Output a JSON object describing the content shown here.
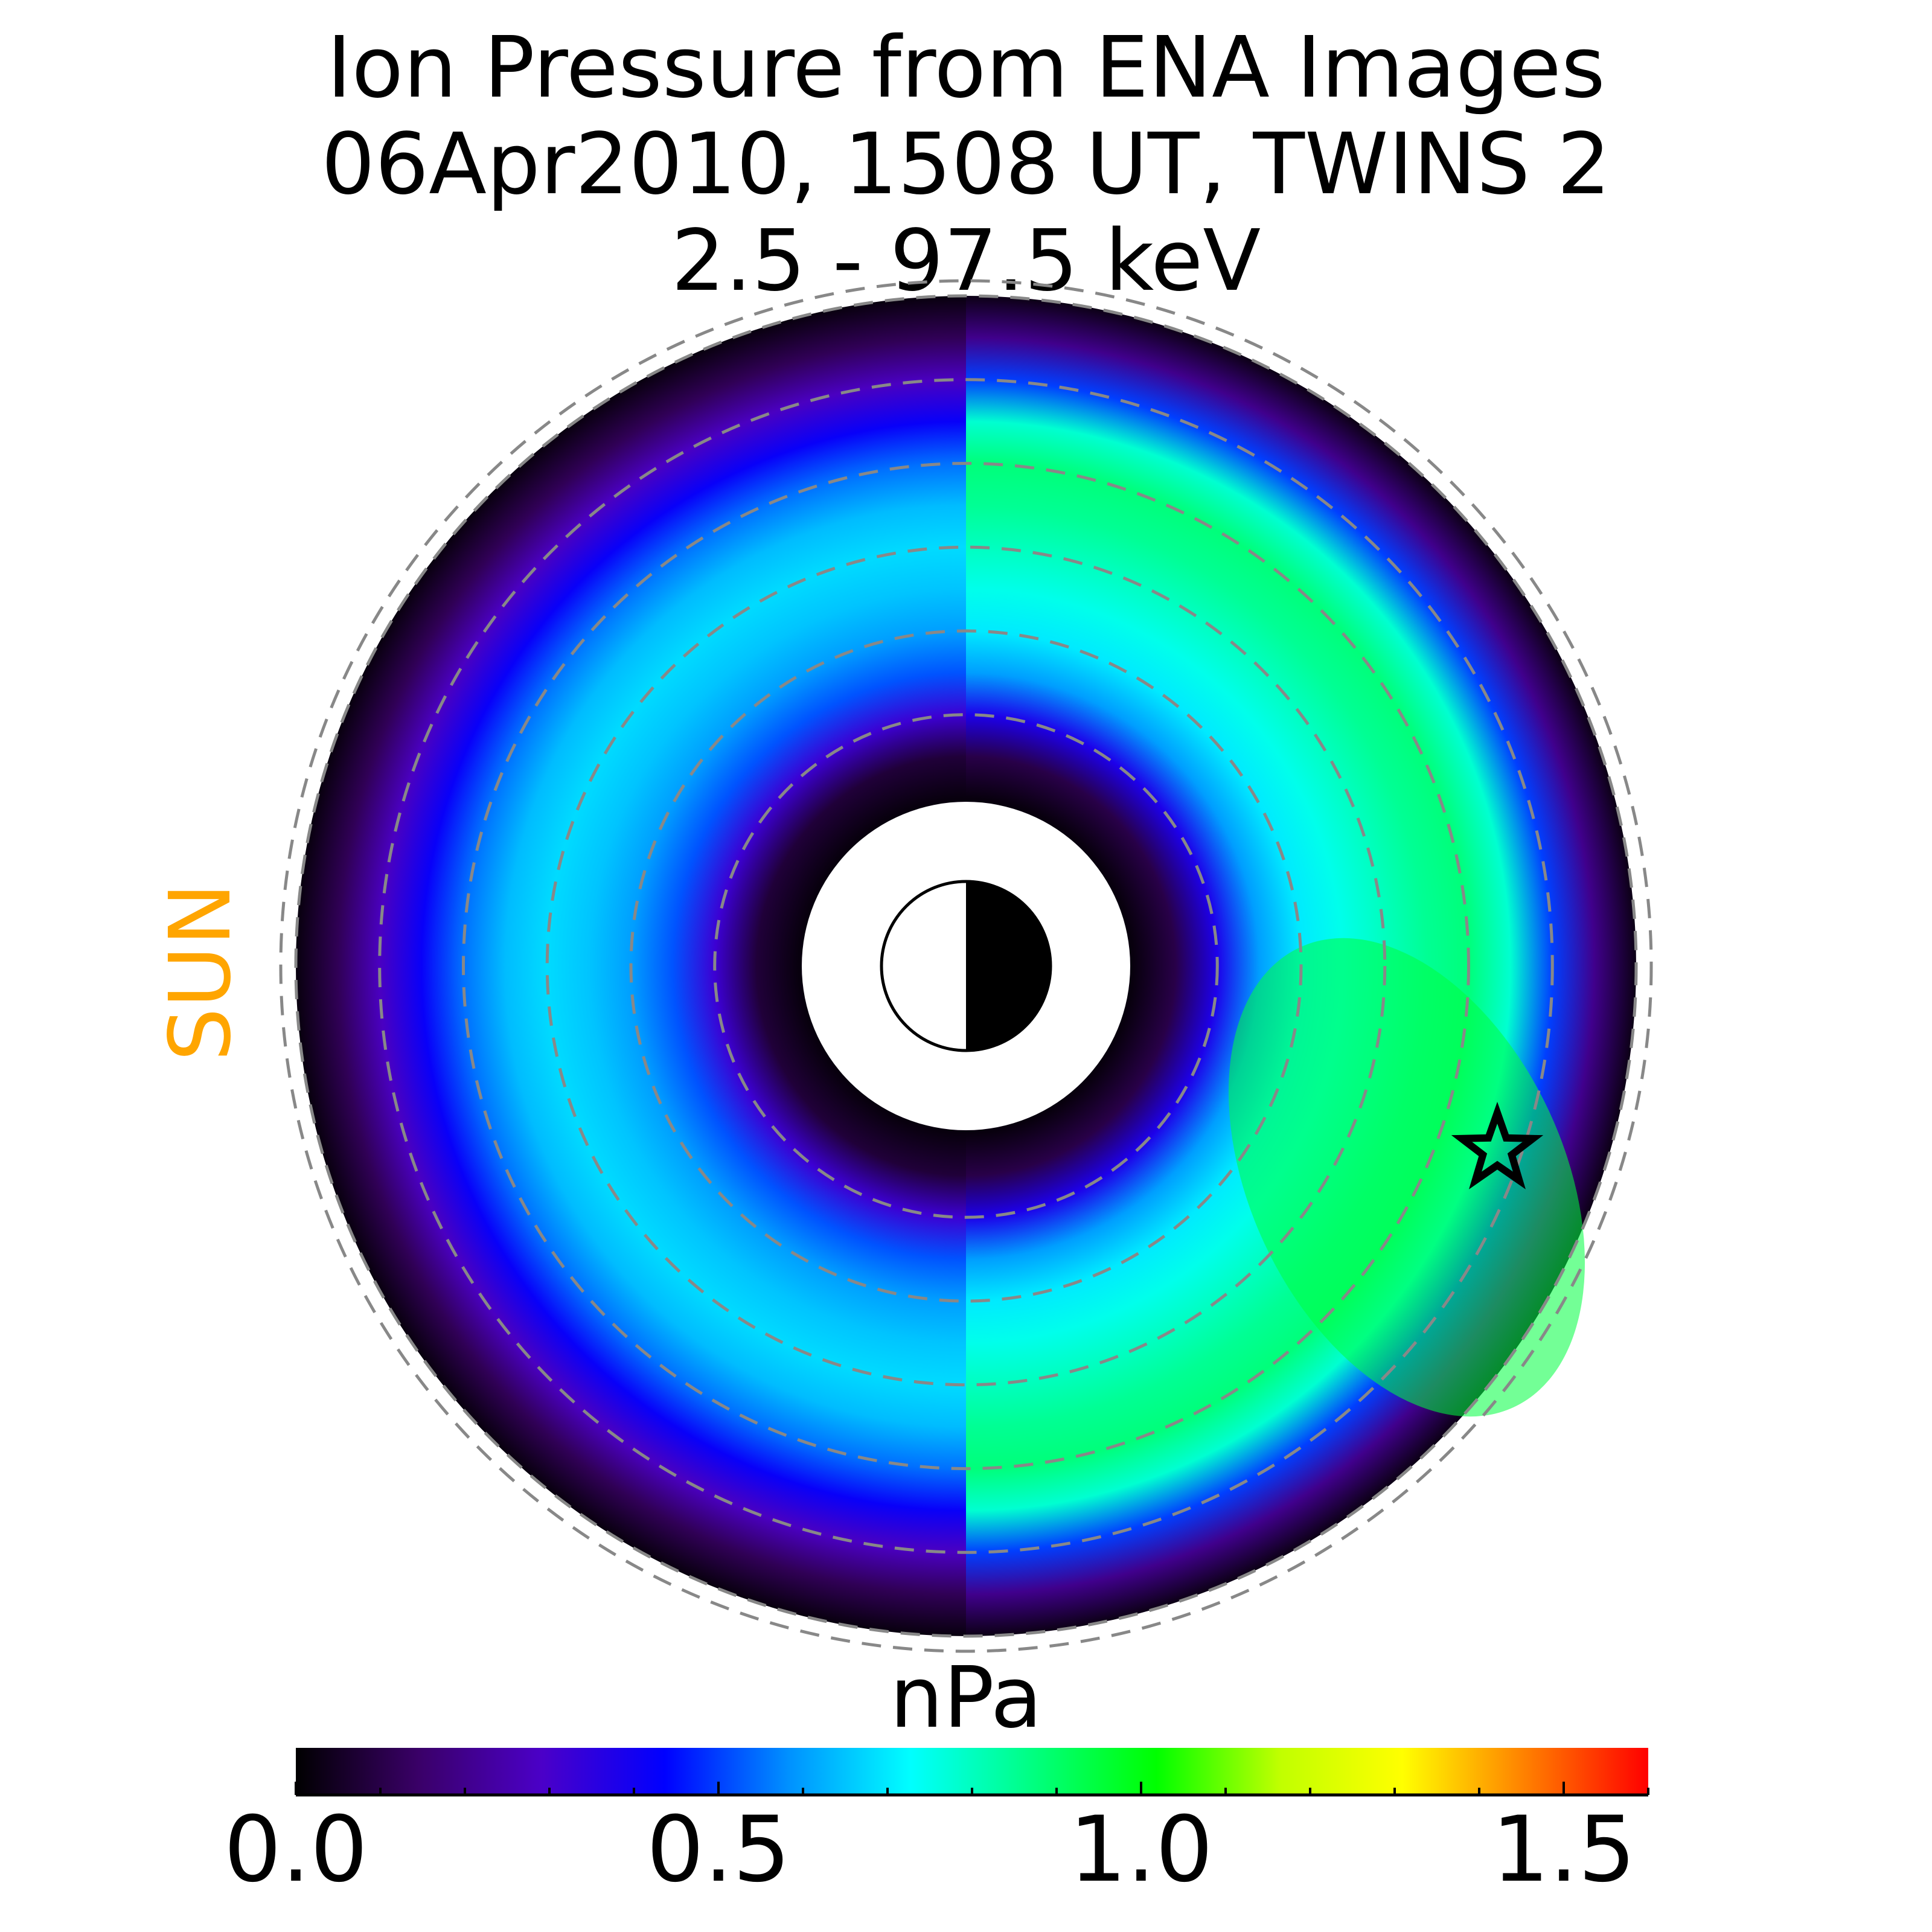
{
  "chart_data": {
    "type": "heatmap",
    "title": [
      "Ion Pressure from  ENA Images",
      "06Apr2010, 1508 UT,  TWINS 2",
      "2.5 - 97.5 keV"
    ],
    "colorbar": {
      "label": "nPa",
      "range": [
        0.0,
        1.6
      ],
      "ticks": [
        0.0,
        0.5,
        1.0,
        1.5
      ],
      "tick_labels": [
        "0.0",
        "0.5",
        "1.0",
        "1.5"
      ],
      "minor_step": 0.1,
      "colormap_stops": [
        "#000000",
        "#3a0068",
        "#4b00c8",
        "#0000ff",
        "#0090ff",
        "#00ffff",
        "#00ff80",
        "#00ff00",
        "#c0ff00",
        "#ffff00",
        "#ff8000",
        "#ff0000"
      ]
    },
    "sun_label": "SUN",
    "sun_label_color": "#ffa500",
    "plot": {
      "projection": "polar (equatorial plane, Sun to the left)",
      "ring_radii_re": [
        3,
        4,
        5,
        6,
        7,
        8
      ],
      "pressure_by_radius_re": {
        "r_re": [
          2.0,
          2.5,
          3.0,
          3.5,
          4.0,
          4.5,
          5.0,
          5.5,
          6.0,
          6.5,
          7.0,
          7.5,
          8.0
        ],
        "dayside": [
          0.02,
          0.08,
          0.32,
          0.52,
          0.6,
          0.65,
          0.68,
          0.64,
          0.55,
          0.42,
          0.28,
          0.12,
          0.02
        ],
        "nightside": [
          0.02,
          0.1,
          0.38,
          0.6,
          0.7,
          0.75,
          0.8,
          0.85,
          0.88,
          0.78,
          0.5,
          0.2,
          0.03
        ]
      },
      "peak_region": {
        "location": "post-midnight / dawn sector",
        "value_approx": 0.88
      }
    },
    "earth_symbol": "day/night disk",
    "marker": {
      "type": "star",
      "description": "spacecraft position",
      "local_time_approx": "dawn side"
    },
    "grid": true
  }
}
